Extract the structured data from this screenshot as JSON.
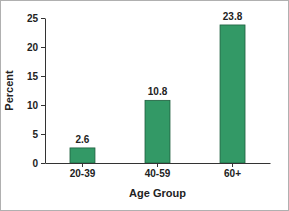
{
  "chart_data": {
    "type": "bar",
    "x_label": "Age Group",
    "y_label": "Percent",
    "categories": [
      "20-39",
      "40-59",
      "60+"
    ],
    "values": [
      2.6,
      10.8,
      23.8
    ],
    "color": "#339966",
    "ylim": [
      0,
      25
    ],
    "yticks": [
      0,
      5,
      10,
      15,
      20,
      25
    ],
    "grid": false,
    "data_labels": true
  }
}
